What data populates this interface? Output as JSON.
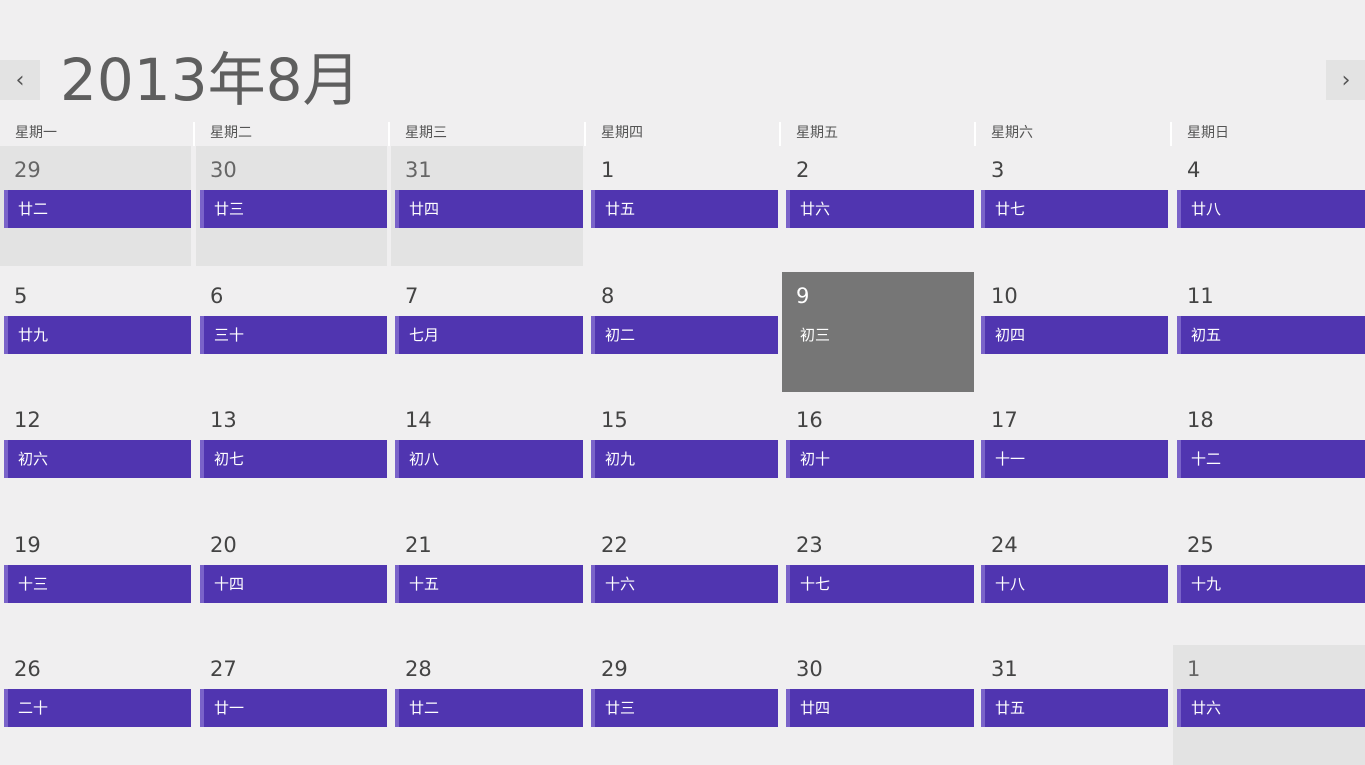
{
  "header": {
    "title": "2013年8月",
    "prev_icon": "‹",
    "next_icon": "›"
  },
  "weekdays": [
    "星期一",
    "星期二",
    "星期三",
    "星期四",
    "星期五",
    "星期六",
    "星期日"
  ],
  "weeks": [
    [
      {
        "day": "29",
        "lunar": "廿二",
        "other": true
      },
      {
        "day": "30",
        "lunar": "廿三",
        "other": true
      },
      {
        "day": "31",
        "lunar": "廿四",
        "other": true
      },
      {
        "day": "1",
        "lunar": "廿五"
      },
      {
        "day": "2",
        "lunar": "廿六"
      },
      {
        "day": "3",
        "lunar": "廿七"
      },
      {
        "day": "4",
        "lunar": "廿八"
      }
    ],
    [
      {
        "day": "5",
        "lunar": "廿九"
      },
      {
        "day": "6",
        "lunar": "三十"
      },
      {
        "day": "7",
        "lunar": "七月"
      },
      {
        "day": "8",
        "lunar": "初二"
      },
      {
        "day": "9",
        "lunar": "初三",
        "today": true
      },
      {
        "day": "10",
        "lunar": "初四"
      },
      {
        "day": "11",
        "lunar": "初五"
      }
    ],
    [
      {
        "day": "12",
        "lunar": "初六"
      },
      {
        "day": "13",
        "lunar": "初七"
      },
      {
        "day": "14",
        "lunar": "初八"
      },
      {
        "day": "15",
        "lunar": "初九"
      },
      {
        "day": "16",
        "lunar": "初十"
      },
      {
        "day": "17",
        "lunar": "十一"
      },
      {
        "day": "18",
        "lunar": "十二"
      }
    ],
    [
      {
        "day": "19",
        "lunar": "十三"
      },
      {
        "day": "20",
        "lunar": "十四"
      },
      {
        "day": "21",
        "lunar": "十五"
      },
      {
        "day": "22",
        "lunar": "十六"
      },
      {
        "day": "23",
        "lunar": "十七"
      },
      {
        "day": "24",
        "lunar": "十八"
      },
      {
        "day": "25",
        "lunar": "十九"
      }
    ],
    [
      {
        "day": "26",
        "lunar": "二十"
      },
      {
        "day": "27",
        "lunar": "廿一"
      },
      {
        "day": "28",
        "lunar": "廿二"
      },
      {
        "day": "29",
        "lunar": "廿三"
      },
      {
        "day": "30",
        "lunar": "廿四"
      },
      {
        "day": "31",
        "lunar": "廿五"
      },
      {
        "day": "1",
        "lunar": "廿六",
        "other": true
      }
    ]
  ],
  "colors": {
    "accent": "#5035b0",
    "today": "#767676",
    "background": "#f0eff0"
  }
}
